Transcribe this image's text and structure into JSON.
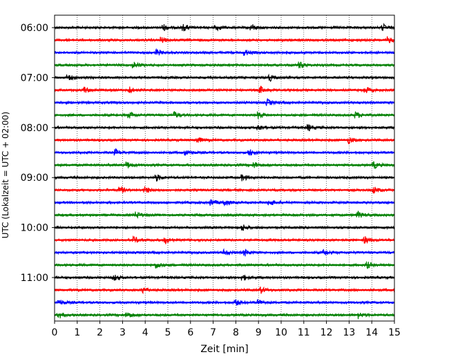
{
  "chart_data": {
    "type": "line",
    "title": "",
    "xlabel": "Zeit  [min]",
    "ylabel": "UTC (Lokalzeit = UTC + 02:00)",
    "xlim": [
      0,
      15
    ],
    "x_ticks": [
      0,
      1,
      2,
      3,
      4,
      5,
      6,
      7,
      8,
      9,
      10,
      11,
      12,
      13,
      14,
      15
    ],
    "x_tick_labels": [
      "0",
      "1",
      "2",
      "3",
      "4",
      "5",
      "6",
      "7",
      "8",
      "9",
      "10",
      "11",
      "12",
      "13",
      "14",
      "15"
    ],
    "y_tick_labels": [
      "06:00",
      "07:00",
      "08:00",
      "09:00",
      "10:00",
      "11:00"
    ],
    "grid": "vertical dotted at each minute",
    "trace_interval_min": 15,
    "trace_colors": [
      "#000000",
      "#ff0000",
      "#0000ff",
      "#008000"
    ],
    "traces": [
      {
        "start": "06:00",
        "color": "#000000",
        "events": [
          4.8,
          5.7,
          7.1,
          8.7,
          14.5
        ]
      },
      {
        "start": "06:15",
        "color": "#ff0000",
        "events": [
          4.7,
          14.7
        ]
      },
      {
        "start": "06:30",
        "color": "#0000ff",
        "events": [
          4.5,
          8.4
        ]
      },
      {
        "start": "06:45",
        "color": "#008000",
        "events": [
          3.5,
          10.8
        ]
      },
      {
        "start": "07:00",
        "color": "#000000",
        "events": [
          0.6,
          9.5
        ]
      },
      {
        "start": "07:15",
        "color": "#ff0000",
        "events": [
          1.3,
          3.3,
          9.1,
          13.7
        ]
      },
      {
        "start": "07:30",
        "color": "#0000ff",
        "events": [
          9.4
        ]
      },
      {
        "start": "07:45",
        "color": "#008000",
        "events": [
          3.3,
          5.3,
          9.0,
          13.3
        ]
      },
      {
        "start": "08:00",
        "color": "#000000",
        "events": [
          9.0,
          11.2
        ]
      },
      {
        "start": "08:15",
        "color": "#ff0000",
        "events": [
          6.3,
          13.0
        ]
      },
      {
        "start": "08:30",
        "color": "#0000ff",
        "events": [
          2.7,
          5.8,
          8.6
        ]
      },
      {
        "start": "08:45",
        "color": "#008000",
        "events": [
          3.2,
          8.8,
          14.1
        ]
      },
      {
        "start": "09:00",
        "color": "#000000",
        "events": [
          4.5,
          8.3
        ]
      },
      {
        "start": "09:15",
        "color": "#ff0000",
        "events": [
          2.9,
          4.0,
          14.1
        ]
      },
      {
        "start": "09:30",
        "color": "#0000ff",
        "events": [
          6.9,
          7.5,
          9.5
        ]
      },
      {
        "start": "09:45",
        "color": "#008000",
        "events": [
          3.6,
          13.4
        ]
      },
      {
        "start": "10:00",
        "color": "#000000",
        "events": [
          8.3
        ]
      },
      {
        "start": "10:15",
        "color": "#ff0000",
        "events": [
          3.5,
          4.9,
          13.7
        ]
      },
      {
        "start": "10:30",
        "color": "#0000ff",
        "events": [
          7.5,
          8.4,
          11.9
        ]
      },
      {
        "start": "10:45",
        "color": "#008000",
        "events": [
          4.5,
          13.8
        ]
      },
      {
        "start": "11:00",
        "color": "#000000",
        "events": [
          2.6,
          8.3
        ]
      },
      {
        "start": "11:15",
        "color": "#ff0000",
        "events": [
          3.9,
          9.1
        ]
      },
      {
        "start": "11:30",
        "color": "#0000ff",
        "events": [
          0.2,
          8.0,
          9.0
        ]
      },
      {
        "start": "11:45",
        "color": "#008000",
        "events": [
          0.2,
          3.2,
          13.4
        ]
      }
    ]
  }
}
